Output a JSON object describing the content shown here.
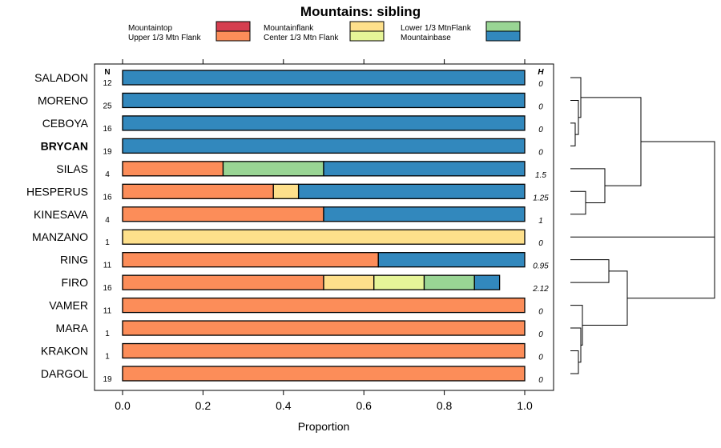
{
  "chart_data": {
    "type": "bar",
    "orientation": "horizontal-stacked",
    "title": "Mountains: sibling",
    "xlabel": "Proportion",
    "ylabel": "",
    "xlim": [
      0,
      1
    ],
    "x_ticks": [
      "0.0",
      "0.2",
      "0.4",
      "0.6",
      "0.8",
      "1.0"
    ],
    "n_header": "N",
    "h_header": "H",
    "legend": [
      {
        "name": "Mountaintop",
        "color": "#d53e4f"
      },
      {
        "name": "Upper 1/3 Mtn Flank",
        "color": "#fc8d59"
      },
      {
        "name": "Mountainflank",
        "color": "#fee08b"
      },
      {
        "name": "Center 1/3 Mtn Flank",
        "color": "#e6f598"
      },
      {
        "name": "Lower 1/3 MtnFlank",
        "color": "#99d594"
      },
      {
        "name": "Mountainbase",
        "color": "#3288bd"
      }
    ],
    "categories": [
      "SALADON",
      "MORENO",
      "CEBOYA",
      "BRYCAN",
      "SILAS",
      "HESPERUS",
      "KINESAVA",
      "MANZANO",
      "RING",
      "FIRO",
      "VAMER",
      "MARA",
      "KRAKON",
      "DARGOL"
    ],
    "highlighted": [
      "BRYCAN"
    ],
    "n_values": [
      "12",
      "25",
      "16",
      "19",
      "4",
      "16",
      "4",
      "1",
      "11",
      "16",
      "11",
      "1",
      "1",
      "19"
    ],
    "h_values": [
      "0",
      "0",
      "0",
      "0",
      "1.5",
      "1.25",
      "1",
      "0",
      "0.95",
      "2.12",
      "0",
      "0",
      "0",
      "0"
    ],
    "series": [
      {
        "name": "Mountaintop",
        "values": [
          0,
          0,
          0,
          0,
          0,
          0,
          0,
          0,
          0,
          0,
          0,
          0,
          0,
          0
        ]
      },
      {
        "name": "Upper 1/3 Mtn Flank",
        "values": [
          0,
          0,
          0,
          0,
          0.25,
          0.375,
          0.5,
          0,
          0.636,
          0.5,
          1,
          1,
          1,
          1
        ]
      },
      {
        "name": "Mountainflank",
        "values": [
          0,
          0,
          0,
          0,
          0,
          0.0625,
          0,
          1,
          0,
          0.125,
          0,
          0,
          0,
          0
        ]
      },
      {
        "name": "Center 1/3 Mtn Flank",
        "values": [
          0,
          0,
          0,
          0,
          0,
          0,
          0,
          0,
          0,
          0.125,
          0,
          0,
          0,
          0
        ]
      },
      {
        "name": "Lower 1/3 MtnFlank",
        "values": [
          0,
          0,
          0,
          0,
          0.25,
          0,
          0,
          0,
          0,
          0.125,
          0,
          0,
          0,
          0
        ]
      },
      {
        "name": "Mountainbase",
        "values": [
          1,
          1,
          1,
          1,
          0.5,
          0.5625,
          0.5,
          0,
          0.364,
          0.0625,
          0,
          0,
          0,
          0
        ]
      }
    ],
    "dendrogram": {
      "description": "hierarchical clustering tree of the 14 rows shown to the right of the plot"
    }
  }
}
